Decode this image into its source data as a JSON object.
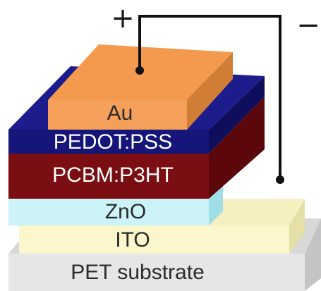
{
  "diagram": {
    "layers": {
      "substrate": {
        "label": "PET substrate",
        "color": "#e6e6e6",
        "text_color": "#2b2b2b"
      },
      "ito": {
        "label": "ITO",
        "color": "#fbf6cc",
        "text_color": "#2b2b2b"
      },
      "zno": {
        "label": "ZnO",
        "color": "#ccf3f7",
        "text_color": "#2b2b2b"
      },
      "active": {
        "label": "PCBM:P3HT",
        "color": "#7a0e12",
        "text_color": "#ffffff"
      },
      "pedot": {
        "label": "PEDOT:PSS",
        "color": "#15157a",
        "text_color": "#ffffff"
      },
      "electrode": {
        "label": "Au",
        "color": "#f5a05a",
        "text_color": "#2b2b2b"
      }
    },
    "terminals": {
      "positive": "+",
      "negative": "−"
    },
    "wire_color": "#111111"
  }
}
